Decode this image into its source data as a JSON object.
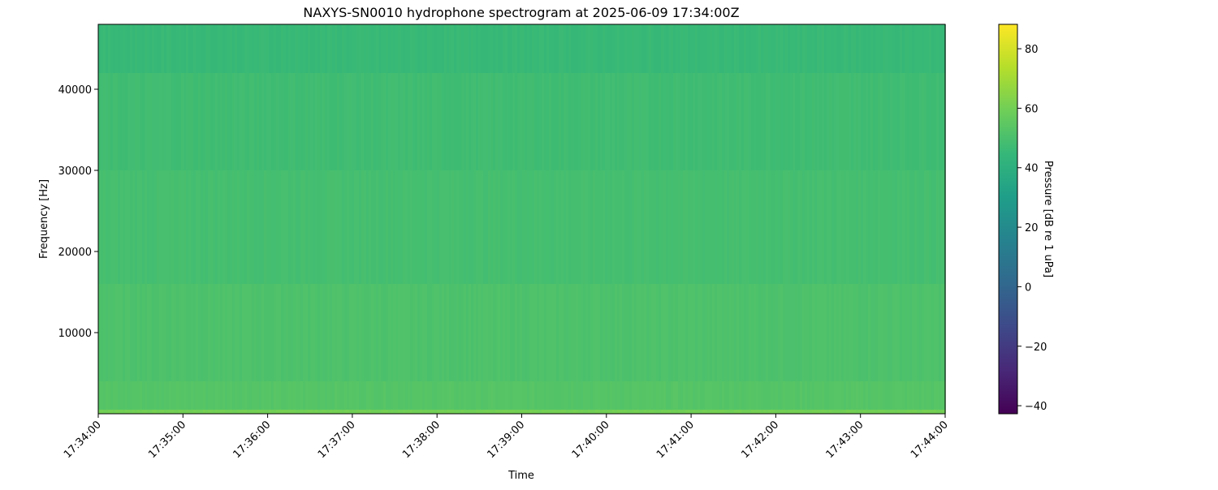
{
  "chart_data": {
    "type": "heatmap",
    "title": "NAXYS-SN0010 hydrophone spectrogram at 2025-06-09 17:34:00Z",
    "xlabel": "Time",
    "ylabel": "Frequency [Hz]",
    "colorbar_label": "Pressure [dB re 1 uPa]",
    "colormap": "viridis",
    "xlim": [
      "17:34:00",
      "17:44:00"
    ],
    "ylim": [
      0,
      48000
    ],
    "clim": [
      -42.7,
      88.2
    ],
    "x_ticks": [
      "17:34:00",
      "17:35:00",
      "17:36:00",
      "17:37:00",
      "17:38:00",
      "17:39:00",
      "17:40:00",
      "17:41:00",
      "17:42:00",
      "17:43:00",
      "17:44:00"
    ],
    "y_ticks": [
      10000,
      20000,
      30000,
      40000
    ],
    "colorbar_ticks": [
      -40,
      -20,
      0,
      20,
      40,
      60,
      80
    ],
    "bands": [
      {
        "f_low": 0,
        "f_high": 500,
        "level_db": 60
      },
      {
        "f_low": 500,
        "f_high": 4000,
        "level_db": 53
      },
      {
        "f_low": 4000,
        "f_high": 16000,
        "level_db": 51
      },
      {
        "f_low": 16000,
        "f_high": 30000,
        "level_db": 49
      },
      {
        "f_low": 30000,
        "f_high": 42000,
        "level_db": 47.5
      },
      {
        "f_low": 42000,
        "f_high": 48000,
        "level_db": 45.5
      }
    ],
    "grid": false
  }
}
